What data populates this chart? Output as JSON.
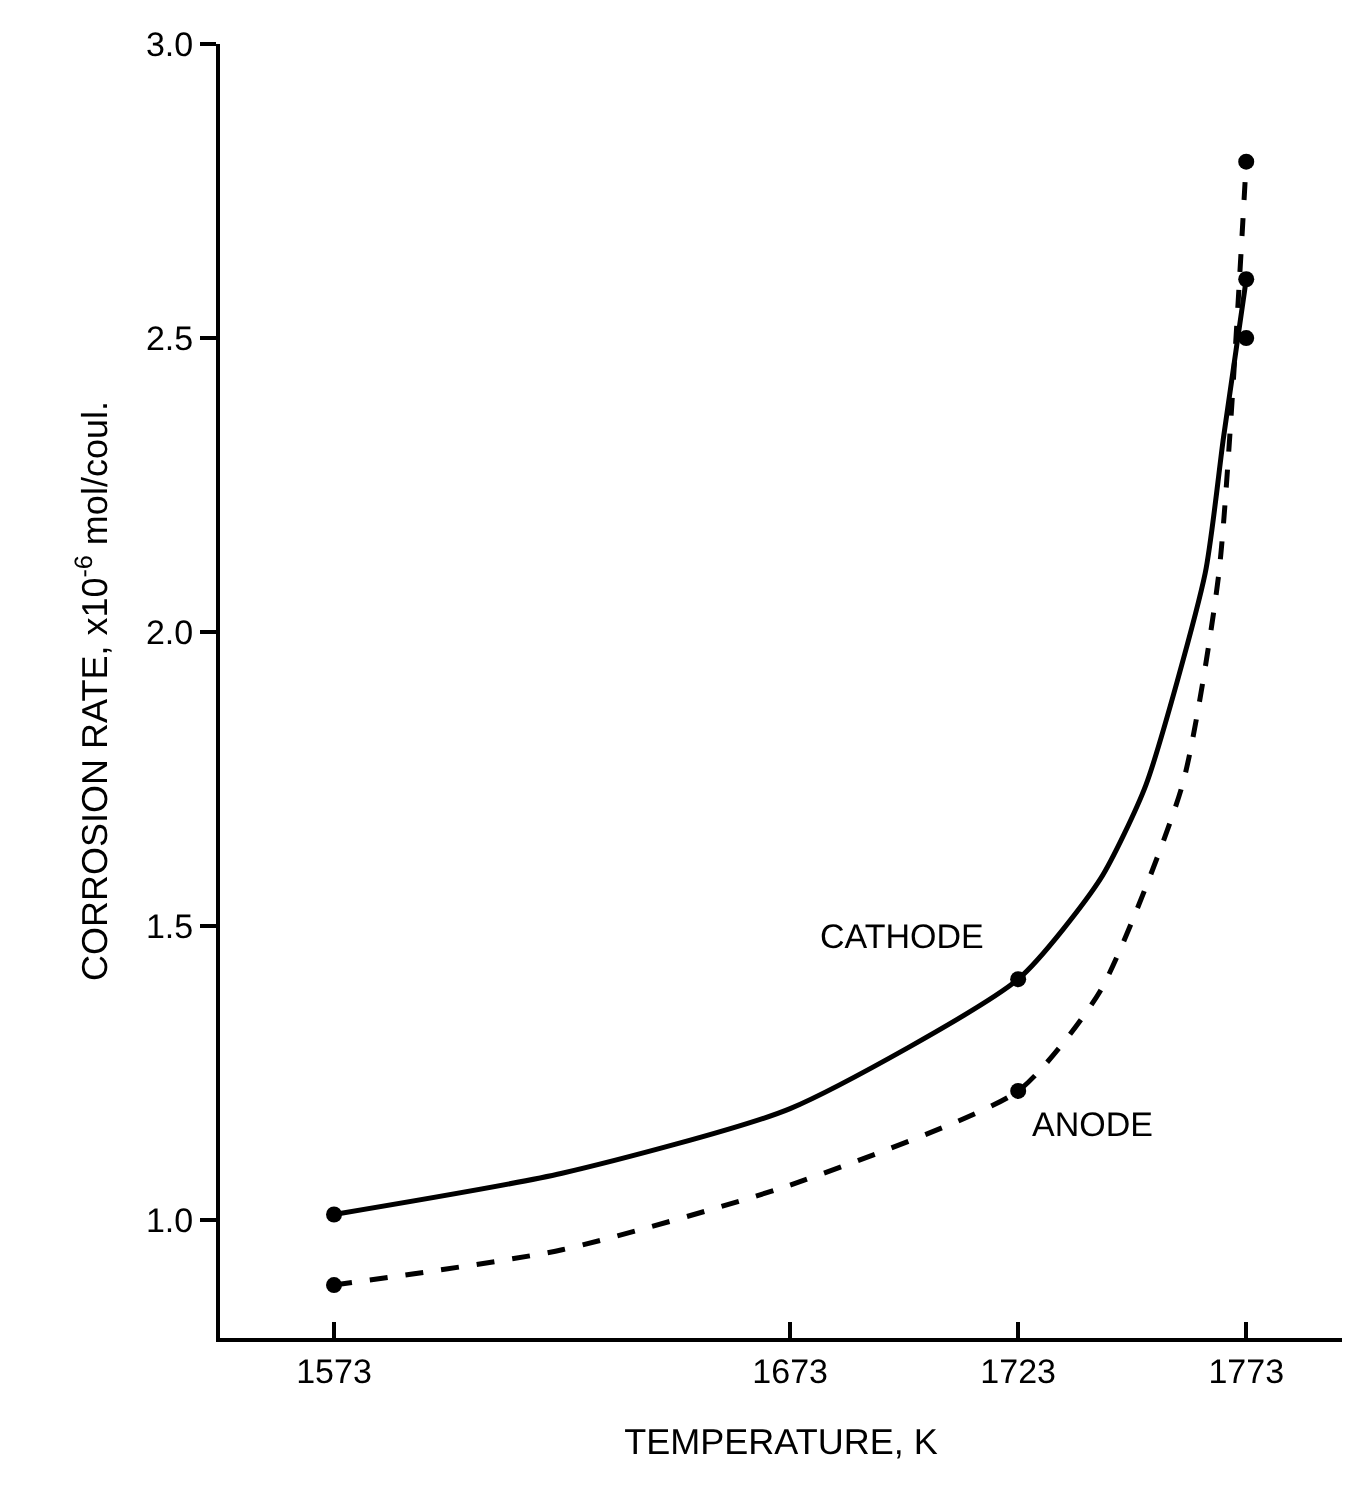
{
  "chart_data": {
    "type": "line",
    "xlabel": "TEMPERATURE, K",
    "ylabel": "CORROSION RATE, x10$^{-6}$ mol/coul.",
    "xlim": [
      1548,
      1794
    ],
    "xticks": [
      1573,
      1673,
      1723,
      1773
    ],
    "ylim": [
      0.8,
      3.0
    ],
    "yticks": [
      {
        "value": 1.0,
        "label": "1.0"
      },
      {
        "value": 1.5,
        "label": "1.5"
      },
      {
        "value": 2.0,
        "label": "2.0"
      },
      {
        "value": 2.5,
        "label": "2.5"
      },
      {
        "value": 3.0,
        "label": "3.0"
      }
    ],
    "grid": false,
    "legend": false,
    "series": [
      {
        "name": "CATHODE",
        "color": "#000000",
        "line_style": "solid",
        "marker": "none",
        "x": [
          1573,
          1623,
          1673,
          1723,
          1741,
          1751,
          1764,
          1768,
          1773
        ],
        "values": [
          1.01,
          1.08,
          1.19,
          1.41,
          1.58,
          1.74,
          2.1,
          2.33,
          2.6
        ]
      },
      {
        "name": "ANODE",
        "color": "#000000",
        "line_style": "dashed",
        "marker": "none",
        "x": [
          1573,
          1623,
          1673,
          1723,
          1741,
          1759,
          1767,
          1773
        ],
        "values": [
          0.89,
          0.95,
          1.06,
          1.22,
          1.39,
          1.74,
          2.1,
          2.8
        ]
      },
      {
        "type": "scatter",
        "color": "#000000",
        "marker": "circle",
        "x": [
          1573,
          1723,
          1773,
          1773
        ],
        "values": [
          1.01,
          1.41,
          2.6,
          2.5
        ]
      },
      {
        "type": "scatter",
        "color": "#000000",
        "marker": "circle",
        "x": [
          1573,
          1723,
          1773
        ],
        "values": [
          0.89,
          1.22,
          2.8
        ]
      }
    ]
  }
}
